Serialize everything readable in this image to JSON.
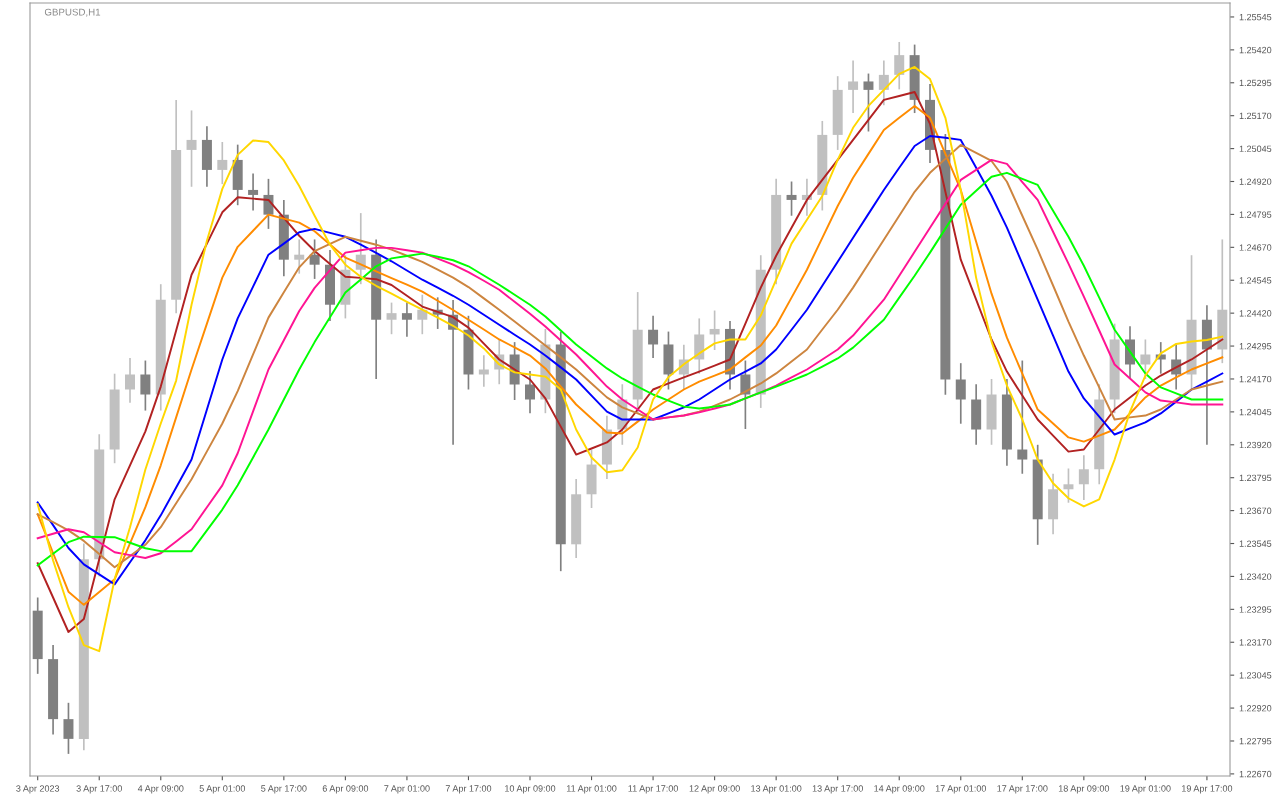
{
  "chart_data": {
    "type": "candlestick",
    "title": "GBPUSD,H1",
    "categories": [
      "3 Apr 2023",
      null,
      null,
      null,
      "3 Apr 17:00",
      null,
      null,
      null,
      "4 Apr 09:00",
      null,
      null,
      null,
      "5 Apr 01:00",
      null,
      null,
      null,
      "5 Apr 17:00",
      null,
      null,
      null,
      "6 Apr 09:00",
      null,
      null,
      null,
      "7 Apr 01:00",
      null,
      null,
      null,
      "7 Apr 17:00",
      null,
      null,
      null,
      "10 Apr 09:00",
      null,
      null,
      null,
      "11 Apr 01:00",
      null,
      null,
      null,
      "11 Apr 17:00",
      null,
      null,
      null,
      "12 Apr 09:00",
      null,
      null,
      null,
      "13 Apr 01:00",
      null,
      null,
      null,
      "13 Apr 17:00",
      null,
      null,
      null,
      "14 Apr 09:00",
      null,
      null,
      null,
      "17 Apr 01:00",
      null,
      null,
      null,
      "17 Apr 17:00",
      null,
      null,
      null,
      "18 Apr 09:00",
      null,
      null,
      null,
      "19 Apr 01:00",
      null,
      null,
      null,
      "19 Apr 17:00",
      null
    ],
    "ohlc": [
      [
        1.2329,
        1.2334,
        1.2305,
        1.23106
      ],
      [
        1.23106,
        1.2316,
        1.2282,
        1.22878
      ],
      [
        1.22878,
        1.2294,
        1.22746,
        1.22803
      ],
      [
        1.22803,
        1.23545,
        1.2276,
        1.23485
      ],
      [
        1.23485,
        1.2396,
        1.2342,
        1.23902
      ],
      [
        1.23902,
        1.2419,
        1.2385,
        1.2413
      ],
      [
        1.2413,
        1.2425,
        1.2408,
        1.24187
      ],
      [
        1.24187,
        1.2424,
        1.2405,
        1.24111
      ],
      [
        1.24111,
        1.2453,
        1.2405,
        1.24471
      ],
      [
        1.24471,
        1.2523,
        1.2442,
        1.2504
      ],
      [
        1.2504,
        1.2519,
        1.249,
        1.25078
      ],
      [
        1.25078,
        1.2513,
        1.249,
        1.24964
      ],
      [
        1.24964,
        1.2507,
        1.2491,
        1.25002
      ],
      [
        1.25002,
        1.2506,
        1.2483,
        1.24888
      ],
      [
        1.24888,
        1.2495,
        1.2481,
        1.24869
      ],
      [
        1.24869,
        1.2493,
        1.2474,
        1.24794
      ],
      [
        1.24794,
        1.2485,
        1.2456,
        1.24623
      ],
      [
        1.24623,
        1.247,
        1.2457,
        1.24642
      ],
      [
        1.24642,
        1.247,
        1.2455,
        1.24604
      ],
      [
        1.24604,
        1.2466,
        1.2439,
        1.24452
      ],
      [
        1.24452,
        1.2464,
        1.244,
        1.24585
      ],
      [
        1.24585,
        1.248,
        1.2453,
        1.24642
      ],
      [
        1.24642,
        1.247,
        1.2417,
        1.24395
      ],
      [
        1.24395,
        1.2446,
        1.2434,
        1.2442
      ],
      [
        1.2442,
        1.2446,
        1.2433,
        1.24395
      ],
      [
        1.24395,
        1.2449,
        1.2434,
        1.24433
      ],
      [
        1.24433,
        1.2448,
        1.2436,
        1.24414
      ],
      [
        1.24414,
        1.2447,
        1.2392,
        1.24357
      ],
      [
        1.24357,
        1.2441,
        1.2413,
        1.24187
      ],
      [
        1.24187,
        1.2426,
        1.2414,
        1.24206
      ],
      [
        1.24206,
        1.2432,
        1.2415,
        1.24263
      ],
      [
        1.24263,
        1.2431,
        1.2409,
        1.24149
      ],
      [
        1.24149,
        1.242,
        1.2404,
        1.24092
      ],
      [
        1.24092,
        1.2436,
        1.2404,
        1.24301
      ],
      [
        1.24301,
        1.2435,
        1.2344,
        1.23542
      ],
      [
        1.23542,
        1.2379,
        1.2349,
        1.23732
      ],
      [
        1.23732,
        1.239,
        1.2368,
        1.23845
      ],
      [
        1.23845,
        1.2403,
        1.2379,
        1.23978
      ],
      [
        1.23978,
        1.2415,
        1.2392,
        1.24092
      ],
      [
        1.24092,
        1.245,
        1.2404,
        1.24357
      ],
      [
        1.24357,
        1.2441,
        1.2425,
        1.24301
      ],
      [
        1.24301,
        1.2435,
        1.2413,
        1.24187
      ],
      [
        1.24187,
        1.243,
        1.2413,
        1.24244
      ],
      [
        1.24244,
        1.244,
        1.2419,
        1.24339
      ],
      [
        1.24339,
        1.2443,
        1.2428,
        1.2436
      ],
      [
        1.2436,
        1.2439,
        1.2413,
        1.24187
      ],
      [
        1.24187,
        1.2424,
        1.2398,
        1.24111
      ],
      [
        1.24111,
        1.2464,
        1.2406,
        1.24585
      ],
      [
        1.24585,
        1.2493,
        1.2453,
        1.24869
      ],
      [
        1.24869,
        1.2492,
        1.2479,
        1.2485
      ],
      [
        1.2485,
        1.2493,
        1.2479,
        1.24869
      ],
      [
        1.24869,
        1.2515,
        1.2481,
        1.25097
      ],
      [
        1.25097,
        1.2532,
        1.2504,
        1.25268
      ],
      [
        1.25268,
        1.2538,
        1.2518,
        1.253
      ],
      [
        1.253,
        1.2533,
        1.2511,
        1.25268
      ],
      [
        1.25268,
        1.2538,
        1.2521,
        1.25325
      ],
      [
        1.25325,
        1.2545,
        1.2527,
        1.254
      ],
      [
        1.254,
        1.2544,
        1.2518,
        1.2523
      ],
      [
        1.2523,
        1.2529,
        1.2499,
        1.2504
      ],
      [
        1.2504,
        1.251,
        1.2411,
        1.24168
      ],
      [
        1.24168,
        1.2423,
        1.24,
        1.24092
      ],
      [
        1.24092,
        1.2415,
        1.2392,
        1.23978
      ],
      [
        1.23978,
        1.2417,
        1.2392,
        1.24111
      ],
      [
        1.24111,
        1.2417,
        1.2384,
        1.23902
      ],
      [
        1.23902,
        1.2424,
        1.2381,
        1.23864
      ],
      [
        1.23864,
        1.2392,
        1.2354,
        1.23637
      ],
      [
        1.23637,
        1.2381,
        1.2358,
        1.23751
      ],
      [
        1.23751,
        1.2383,
        1.237,
        1.2377
      ],
      [
        1.2377,
        1.2388,
        1.2371,
        1.23827
      ],
      [
        1.23827,
        1.2415,
        1.2377,
        1.24092
      ],
      [
        1.24092,
        1.2438,
        1.2404,
        1.2432
      ],
      [
        1.2432,
        1.2437,
        1.2417,
        1.24225
      ],
      [
        1.24225,
        1.2432,
        1.2417,
        1.24263
      ],
      [
        1.24263,
        1.2431,
        1.2419,
        1.24244
      ],
      [
        1.24244,
        1.243,
        1.2413,
        1.24187
      ],
      [
        1.24187,
        1.2464,
        1.2413,
        1.24395
      ],
      [
        1.24395,
        1.2445,
        1.2392,
        1.24282
      ],
      [
        1.24282,
        1.247,
        1.2423,
        1.24433
      ]
    ],
    "colors": [
      "#808080",
      "#808080",
      "#808080",
      "#c0c0c0",
      "#c0c0c0",
      "#c0c0c0",
      "#c0c0c0",
      "#808080",
      "#c0c0c0",
      "#c0c0c0",
      "#c0c0c0",
      "#808080",
      "#c0c0c0",
      "#808080",
      "#808080",
      "#808080",
      "#808080",
      "#c0c0c0",
      "#808080",
      "#808080",
      "#c0c0c0",
      "#c0c0c0",
      "#808080",
      "#c0c0c0",
      "#808080",
      "#c0c0c0",
      "#808080",
      "#808080",
      "#808080",
      "#c0c0c0",
      "#c0c0c0",
      "#808080",
      "#808080",
      "#c0c0c0",
      "#808080",
      "#c0c0c0",
      "#c0c0c0",
      "#c0c0c0",
      "#c0c0c0",
      "#c0c0c0",
      "#808080",
      "#808080",
      "#c0c0c0",
      "#c0c0c0",
      "#c0c0c0",
      "#808080",
      "#808080",
      "#c0c0c0",
      "#c0c0c0",
      "#808080",
      "#c0c0c0",
      "#c0c0c0",
      "#c0c0c0",
      "#c0c0c0",
      "#808080",
      "#c0c0c0",
      "#c0c0c0",
      "#808080",
      "#808080",
      "#808080",
      "#808080",
      "#808080",
      "#c0c0c0",
      "#808080",
      "#808080",
      "#808080",
      "#c0c0c0",
      "#c0c0c0",
      "#c0c0c0",
      "#c0c0c0",
      "#c0c0c0",
      "#808080",
      "#c0c0c0",
      "#808080",
      "#808080",
      "#c0c0c0",
      "#808080",
      "#c0c0c0"
    ],
    "series": [
      {
        "type": "line",
        "color": "#b22222",
        "values": [
          1.2347,
          1.2334,
          1.23209,
          1.23258,
          1.23485,
          1.23713,
          1.23842,
          1.23971,
          1.24141,
          1.24354,
          1.24566,
          1.24684,
          1.24803,
          1.2486,
          1.24855,
          1.2485,
          1.24782,
          1.24714,
          1.24656,
          1.24607,
          1.24558,
          1.24554,
          1.24549,
          1.24527,
          1.24486,
          1.24445,
          1.24425,
          1.24405,
          1.24365,
          1.24304,
          1.24244,
          1.24206,
          1.24168,
          1.24096,
          1.23989,
          1.23883,
          1.23906,
          1.23929,
          1.23978,
          1.24054,
          1.2413,
          1.24153,
          1.24176,
          1.24198,
          1.24221,
          1.24244,
          1.2438,
          1.24517,
          1.24638,
          1.24744,
          1.2485,
          1.24926,
          1.25002,
          1.25078,
          1.25154,
          1.2523,
          1.25245,
          1.2526,
          1.25139,
          1.24881,
          1.24623,
          1.24471,
          1.2432,
          1.24198,
          1.24107,
          1.24016,
          1.23955,
          1.23894,
          1.23902,
          1.23978,
          1.24054,
          1.241,
          1.24145,
          1.24183,
          1.24214,
          1.24244,
          1.24282,
          1.2432
        ]
      },
      {
        "type": "line",
        "color": "#ff8c00",
        "values": [
          1.23656,
          1.23509,
          1.23362,
          1.23312,
          1.23361,
          1.23409,
          1.23546,
          1.23683,
          1.23842,
          1.24024,
          1.24206,
          1.2438,
          1.24555,
          1.24672,
          1.24733,
          1.24794,
          1.24779,
          1.24764,
          1.24731,
          1.24681,
          1.24631,
          1.24605,
          1.24579,
          1.24553,
          1.24528,
          1.24502,
          1.24467,
          1.24432,
          1.24395,
          1.24358,
          1.2432,
          1.2429,
          1.24259,
          1.2421,
          1.24141,
          1.24073,
          1.2402,
          1.23967,
          1.23963,
          1.24008,
          1.24054,
          1.24092,
          1.2413,
          1.2416,
          1.24183,
          1.24206,
          1.24252,
          1.24297,
          1.24373,
          1.24479,
          1.24585,
          1.24706,
          1.24827,
          1.24934,
          1.25025,
          1.25116,
          1.25162,
          1.25207,
          1.25162,
          1.25025,
          1.24888,
          1.24691,
          1.24494,
          1.24327,
          1.2419,
          1.24054,
          1.24001,
          1.23948,
          1.23932,
          1.23955,
          1.23978,
          1.24039,
          1.241,
          1.24145,
          1.24176,
          1.24206,
          1.24229,
          1.24252
        ]
      },
      {
        "type": "line",
        "color": "#0000ff",
        "values": [
          1.23701,
          1.23615,
          1.23528,
          1.23466,
          1.23428,
          1.2339,
          1.23474,
          1.23557,
          1.23652,
          1.23758,
          1.23864,
          1.24054,
          1.24244,
          1.244,
          1.24521,
          1.24642,
          1.24684,
          1.24727,
          1.2474,
          1.24725,
          1.2471,
          1.2468,
          1.24649,
          1.24617,
          1.24582,
          1.24547,
          1.24517,
          1.24486,
          1.24452,
          1.24414,
          1.24376,
          1.24338,
          1.24301,
          1.24259,
          1.24214,
          1.24168,
          1.24107,
          1.24046,
          1.24016,
          1.24016,
          1.24016,
          1.24039,
          1.24062,
          1.24092,
          1.2413,
          1.24168,
          1.24198,
          1.24229,
          1.24282,
          1.24357,
          1.24433,
          1.24524,
          1.24615,
          1.24706,
          1.24797,
          1.24888,
          1.24972,
          1.25055,
          1.25093,
          1.25086,
          1.25078,
          1.24972,
          1.24866,
          1.24745,
          1.24608,
          1.24471,
          1.24335,
          1.24198,
          1.24096,
          1.24027,
          1.23959,
          1.23982,
          1.24005,
          1.24039,
          1.24084,
          1.2413,
          1.2416,
          1.24191
        ]
      },
      {
        "type": "line",
        "color": "#cd853f",
        "values": [
          1.23656,
          1.23626,
          1.23595,
          1.23555,
          1.23505,
          1.23455,
          1.23497,
          1.2354,
          1.23607,
          1.23698,
          1.23789,
          1.23895,
          1.24001,
          1.24124,
          1.24263,
          1.24403,
          1.24499,
          1.24594,
          1.24656,
          1.24683,
          1.2471,
          1.24695,
          1.2468,
          1.24661,
          1.24638,
          1.24615,
          1.24585,
          1.24555,
          1.24519,
          1.24476,
          1.24433,
          1.24388,
          1.24343,
          1.24297,
          1.24252,
          1.24206,
          1.24153,
          1.241,
          1.24062,
          1.24039,
          1.24016,
          1.24024,
          1.24031,
          1.24046,
          1.24069,
          1.24092,
          1.24122,
          1.24153,
          1.24191,
          1.24236,
          1.24282,
          1.24358,
          1.24433,
          1.24517,
          1.24608,
          1.24699,
          1.2479,
          1.24881,
          1.24953,
          1.25006,
          1.25059,
          1.25029,
          1.24998,
          1.24919,
          1.2479,
          1.24661,
          1.24525,
          1.24388,
          1.24259,
          1.24138,
          1.24016,
          1.24024,
          1.24031,
          1.24054,
          1.24092,
          1.2413,
          1.24145,
          1.2416
        ]
      },
      {
        "type": "line",
        "color": "#ff1493",
        "values": [
          1.23565,
          1.23582,
          1.23599,
          1.23588,
          1.2355,
          1.23512,
          1.23501,
          1.2349,
          1.23508,
          1.23553,
          1.23599,
          1.23683,
          1.23766,
          1.23888,
          1.24047,
          1.24206,
          1.24317,
          1.24428,
          1.24516,
          1.24583,
          1.2465,
          1.24659,
          1.24668,
          1.24668,
          1.24659,
          1.2465,
          1.24627,
          1.24604,
          1.24576,
          1.24543,
          1.24509,
          1.24463,
          1.24418,
          1.24369,
          1.24316,
          1.24263,
          1.24202,
          1.24141,
          1.24092,
          1.24054,
          1.24016,
          1.24024,
          1.24031,
          1.24043,
          1.24058,
          1.24073,
          1.24096,
          1.24119,
          1.24145,
          1.24176,
          1.24206,
          1.24244,
          1.24282,
          1.24335,
          1.24403,
          1.24471,
          1.24562,
          1.24653,
          1.24744,
          1.24835,
          1.24926,
          1.24964,
          1.25002,
          1.24987,
          1.24918,
          1.2485,
          1.24729,
          1.24608,
          1.24483,
          1.24354,
          1.24225,
          1.24172,
          1.24119,
          1.24088,
          1.24081,
          1.24073,
          1.24073,
          1.24073
        ]
      },
      {
        "type": "line",
        "color": "#00ff00",
        "values": [
          1.23462,
          1.23506,
          1.2355,
          1.23571,
          1.2357,
          1.23569,
          1.23548,
          1.23527,
          1.23516,
          1.23516,
          1.23516,
          1.23595,
          1.23674,
          1.23766,
          1.23872,
          1.23978,
          1.24092,
          1.24206,
          1.2431,
          1.24404,
          1.24498,
          1.24548,
          1.24598,
          1.24628,
          1.24637,
          1.24646,
          1.24634,
          1.24621,
          1.24598,
          1.24563,
          1.24528,
          1.2449,
          1.24452,
          1.24407,
          1.24354,
          1.24301,
          1.24255,
          1.2421,
          1.24172,
          1.24141,
          1.24111,
          1.24088,
          1.24065,
          1.24058,
          1.24065,
          1.24073,
          1.24096,
          1.24119,
          1.24141,
          1.24164,
          1.24187,
          1.24217,
          1.24248,
          1.24289,
          1.24342,
          1.24395,
          1.24479,
          1.24562,
          1.2465,
          1.24741,
          1.24832,
          1.24885,
          1.24938,
          1.24953,
          1.2493,
          1.24907,
          1.24809,
          1.2471,
          1.246,
          1.24479,
          1.24357,
          1.24274,
          1.24191,
          1.24138,
          1.24115,
          1.24092,
          1.24092,
          1.24092
        ]
      },
      {
        "type": "line",
        "color": "#ffd700",
        "values": [
          1.23694,
          1.23481,
          1.23303,
          1.23159,
          1.23136,
          1.23409,
          1.23607,
          1.23826,
          1.24001,
          1.24164,
          1.24452,
          1.24695,
          1.24892,
          1.25021,
          1.25076,
          1.2507,
          1.25,
          1.24903,
          1.2479,
          1.2468,
          1.24604,
          1.24558,
          1.24524,
          1.24494,
          1.24463,
          1.24433,
          1.24403,
          1.24372,
          1.24335,
          1.24286,
          1.24225,
          1.24195,
          1.24187,
          1.24179,
          1.2413,
          1.23978,
          1.23872,
          1.23816,
          1.23823,
          1.2391,
          1.24092,
          1.24177,
          1.24226,
          1.24267,
          1.24305,
          1.2432,
          1.2432,
          1.24411,
          1.24547,
          1.24684,
          1.24775,
          1.24865,
          1.25002,
          1.25124,
          1.25207,
          1.25268,
          1.25329,
          1.25355,
          1.25309,
          1.25162,
          1.24888,
          1.24554,
          1.24312,
          1.24145,
          1.24016,
          1.23864,
          1.23774,
          1.23717,
          1.23686,
          1.23713,
          1.23864,
          1.24046,
          1.24183,
          1.24267,
          1.24303,
          1.24312,
          1.24318,
          1.24331
        ]
      }
    ],
    "ylim": [
      1.22662,
      1.25598
    ],
    "yticks": [
      {
        "value": 1.2267,
        "label": "1.22670"
      },
      {
        "value": 1.22795,
        "label": "1.22795"
      },
      {
        "value": 1.2292,
        "label": "1.22920"
      },
      {
        "value": 1.23045,
        "label": "1.23045"
      },
      {
        "value": 1.2317,
        "label": "1.23170"
      },
      {
        "value": 1.23295,
        "label": "1.23295"
      },
      {
        "value": 1.2342,
        "label": "1.23420"
      },
      {
        "value": 1.23545,
        "label": "1.23545"
      },
      {
        "value": 1.2367,
        "label": "1.23670"
      },
      {
        "value": 1.23795,
        "label": "1.23795"
      },
      {
        "value": 1.2392,
        "label": "1.23920"
      },
      {
        "value": 1.24045,
        "label": "1.24045"
      },
      {
        "value": 1.2417,
        "label": "1.24170"
      },
      {
        "value": 1.24295,
        "label": "1.24295"
      },
      {
        "value": 1.2442,
        "label": "1.24420"
      },
      {
        "value": 1.24545,
        "label": "1.24545"
      },
      {
        "value": 1.2467,
        "label": "1.24670"
      },
      {
        "value": 1.24795,
        "label": "1.24795"
      },
      {
        "value": 1.2492,
        "label": "1.24920"
      },
      {
        "value": 1.25045,
        "label": "1.25045"
      },
      {
        "value": 1.2517,
        "label": "1.25170"
      },
      {
        "value": 1.25295,
        "label": "1.25295"
      },
      {
        "value": 1.2542,
        "label": "1.25420"
      },
      {
        "value": 1.25545,
        "label": "1.25545"
      }
    ],
    "grid": false
  }
}
